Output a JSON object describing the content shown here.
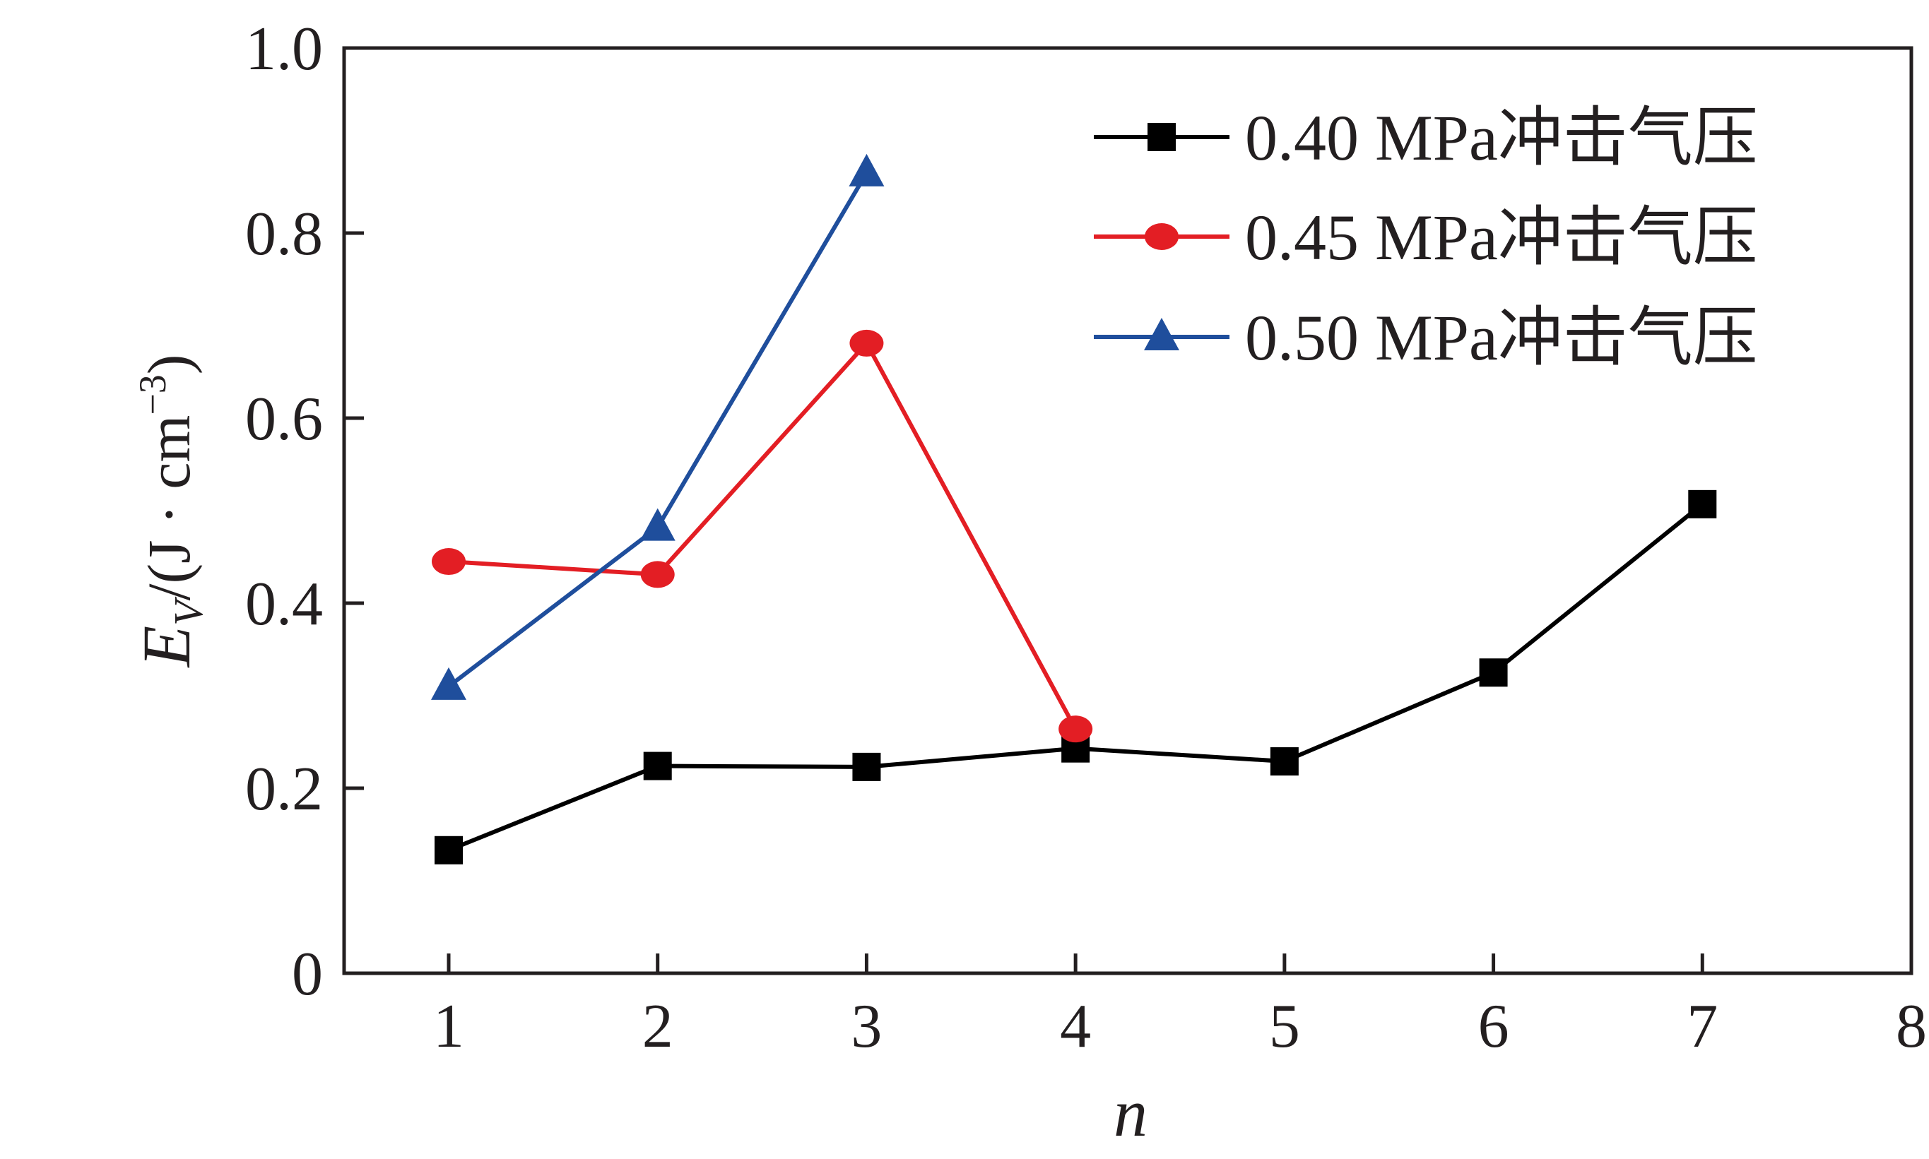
{
  "chart_data": {
    "type": "line",
    "xlabel": "n",
    "ylabel": {
      "main": "E",
      "subscript": "V",
      "units": "/(J · cm",
      "superscript": "−3",
      "close": ")"
    },
    "xlim": [
      0.5,
      8
    ],
    "ylim": [
      0,
      1.0
    ],
    "x_ticks": [
      "1",
      "2",
      "3",
      "4",
      "5",
      "6",
      "7",
      "8"
    ],
    "x_tick_values": [
      1,
      2,
      3,
      4,
      5,
      6,
      7,
      8
    ],
    "y_ticks": [
      "0",
      "0.2",
      "0.4",
      "0.6",
      "0.8",
      "1.0"
    ],
    "y_tick_values": [
      0,
      0.2,
      0.4,
      0.6,
      0.8,
      1.0
    ],
    "grid": false,
    "legend_position": "top-right",
    "series": [
      {
        "name": "0.40 MPa冲击气压",
        "color": "#000000",
        "marker": "square",
        "x": [
          1,
          2,
          3,
          4,
          5,
          6,
          7
        ],
        "y": [
          0.133,
          0.224,
          0.223,
          0.243,
          0.229,
          0.325,
          0.507
        ]
      },
      {
        "name": "0.45 MPa冲击气压",
        "color": "#e31e24",
        "marker": "circle",
        "x": [
          1,
          2,
          3,
          4
        ],
        "y": [
          0.445,
          0.431,
          0.681,
          0.264
        ]
      },
      {
        "name": "0.50 MPa冲击气压",
        "color": "#1f4e9c",
        "marker": "triangle",
        "x": [
          1,
          2,
          3
        ],
        "y": [
          0.31,
          0.482,
          0.865
        ]
      }
    ]
  }
}
